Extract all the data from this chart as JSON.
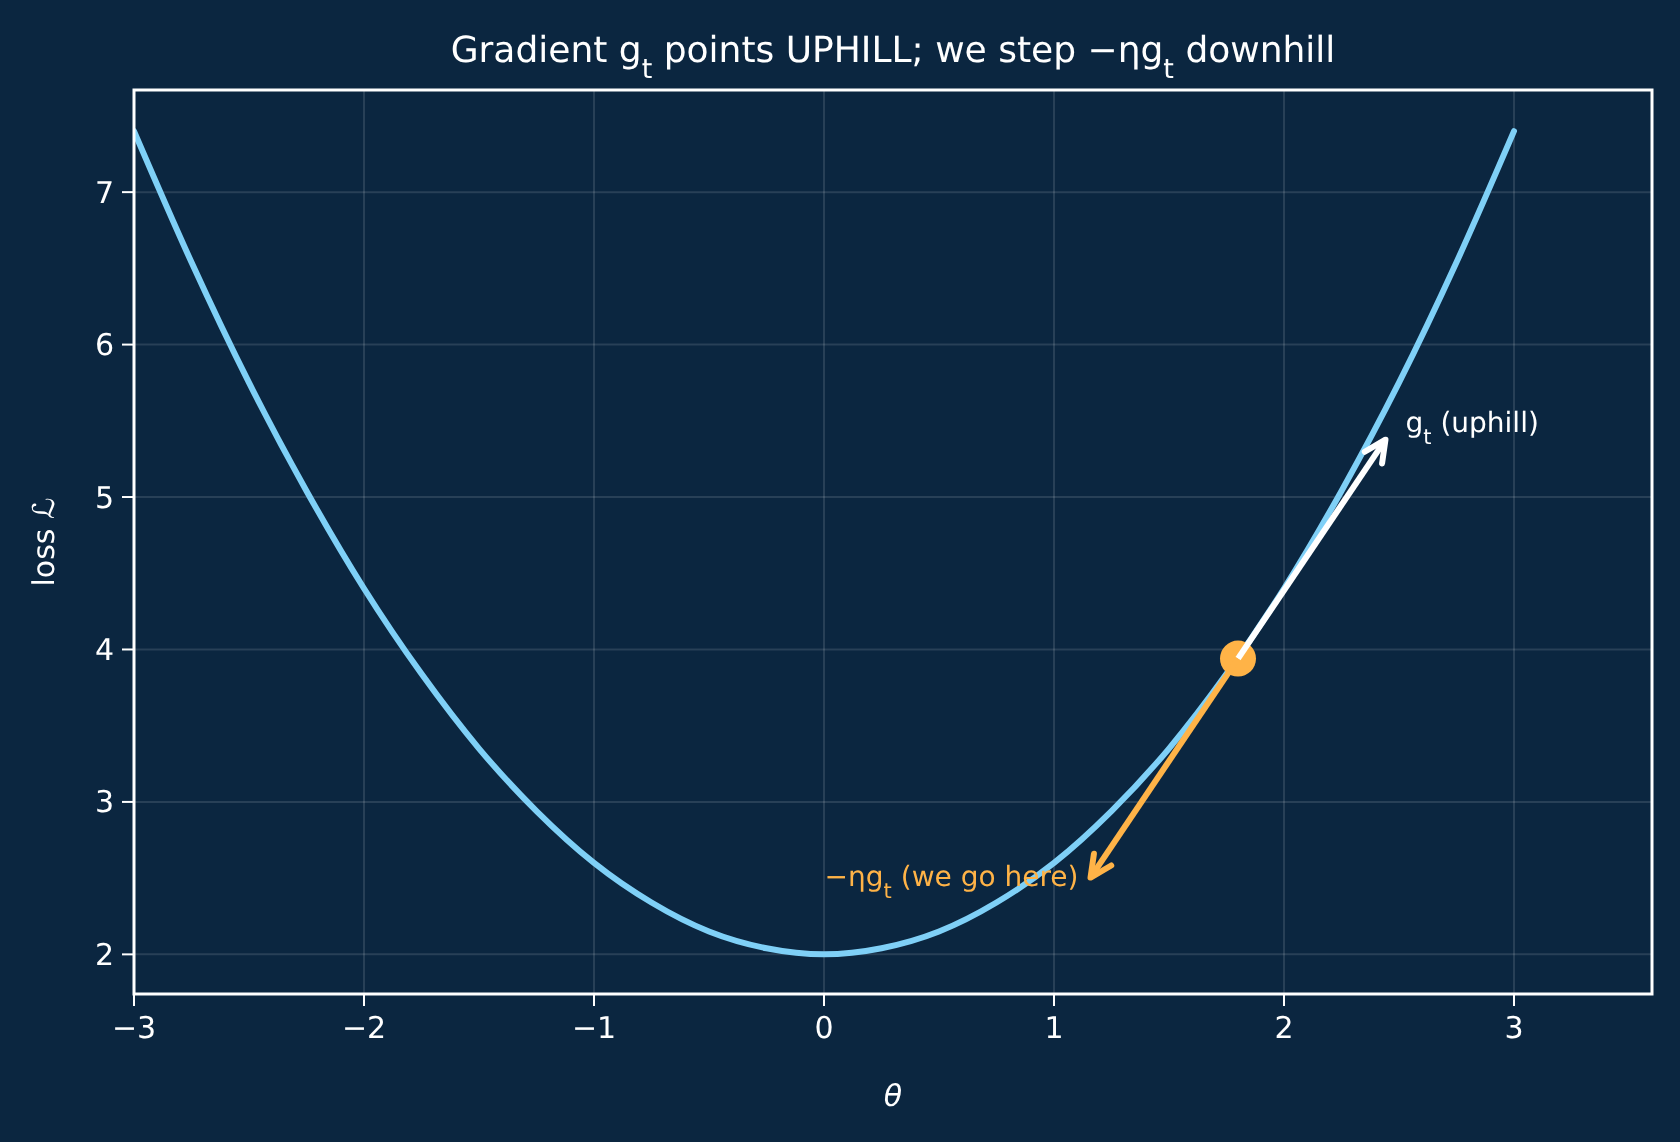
{
  "chart_data": {
    "type": "line",
    "title": "Gradient g$_{t}$ points UPHILL; we step −ηg$_{t}$ downhill",
    "xlabel": "θ",
    "ylabel": "loss ℒ",
    "xlim": [
      -3,
      3.6
    ],
    "ylim": [
      1.74,
      7.67
    ],
    "xticks": [
      {
        "value": -3,
        "label": "−3"
      },
      {
        "value": -2,
        "label": "−2"
      },
      {
        "value": -1,
        "label": "−1"
      },
      0,
      1,
      2,
      3
    ],
    "yticks": [
      2,
      3,
      4,
      5,
      6,
      7
    ],
    "grid": true,
    "line_style": "solid",
    "x": [
      -3,
      -2.75,
      -2.5,
      -2.25,
      -2,
      -1.75,
      -1.5,
      -1.25,
      -1,
      -0.75,
      -0.5,
      -0.25,
      0,
      0.25,
      0.5,
      0.75,
      1,
      1.25,
      1.5,
      1.75,
      2,
      2.25,
      2.5,
      2.75,
      3
    ],
    "series": [
      {
        "color": "#7fd0f7",
        "values": [
          7.4,
          6.54,
          5.75,
          5.04,
          4.4,
          3.84,
          3.35,
          2.94,
          2.6,
          2.34,
          2.15,
          2.04,
          2,
          2.04,
          2.15,
          2.34,
          2.6,
          2.94,
          3.35,
          3.84,
          4.4,
          5.04,
          5.75,
          6.54,
          7.4
        ]
      },
      {
        "type": "scatter",
        "color": "#ffb347",
        "x": [
          1.8
        ],
        "values": [
          3.94
        ]
      }
    ],
    "annotations": [
      {
        "text": "g$_{t}$ (uphill)",
        "x": 1.8,
        "y": 3.94
      },
      {
        "text": "−ηg$_{t}$ (we go here)",
        "x": 1.8,
        "y": 3.94
      }
    ]
  }
}
